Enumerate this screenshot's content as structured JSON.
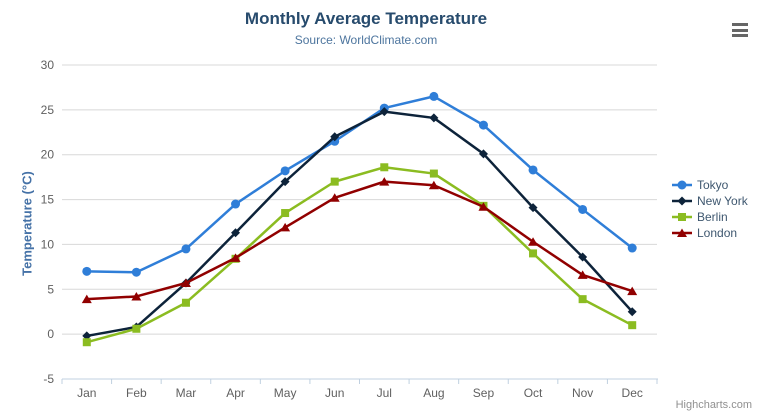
{
  "header": {
    "title": "Monthly Average Temperature",
    "subtitle": "Source: WorldClimate.com"
  },
  "credits_label": "Highcharts.com",
  "palette": {
    "title_color": "#274b6d",
    "subtitle_color": "#4d759e",
    "axis_title_color": "#4572a7",
    "tick_label_color": "#606060",
    "gridline_color": "#d8d8d8",
    "axis_line_color": "#c0d0e0",
    "legend_text_color": "#3e576f",
    "credits_color": "#909090",
    "menu_icon_color": "#666666"
  },
  "chart_data": {
    "type": "line",
    "title": "Monthly Average Temperature",
    "subtitle": "Source: WorldClimate.com",
    "categories": [
      "Jan",
      "Feb",
      "Mar",
      "Apr",
      "May",
      "Jun",
      "Jul",
      "Aug",
      "Sep",
      "Oct",
      "Nov",
      "Dec"
    ],
    "xlabel": "",
    "ylabel": "Temperature (°C)",
    "ylim": [
      -5,
      30
    ],
    "ytick_step": 5,
    "grid": true,
    "legend_position": "right",
    "series": [
      {
        "name": "Tokyo",
        "color": "#2f7ed8",
        "marker": "circle",
        "values": [
          7.0,
          6.9,
          9.5,
          14.5,
          18.2,
          21.5,
          25.2,
          26.5,
          23.3,
          18.3,
          13.9,
          9.6
        ]
      },
      {
        "name": "New York",
        "color": "#0d233a",
        "marker": "diamond",
        "values": [
          -0.2,
          0.8,
          5.7,
          11.3,
          17.0,
          22.0,
          24.8,
          24.1,
          20.1,
          14.1,
          8.6,
          2.5
        ]
      },
      {
        "name": "Berlin",
        "color": "#8bbc21",
        "marker": "square",
        "values": [
          -0.9,
          0.6,
          3.5,
          8.4,
          13.5,
          17.0,
          18.6,
          17.9,
          14.3,
          9.0,
          3.9,
          1.0
        ]
      },
      {
        "name": "London",
        "color": "#910000",
        "marker": "triangle",
        "values": [
          3.9,
          4.2,
          5.7,
          8.5,
          11.9,
          15.2,
          17.0,
          16.6,
          14.2,
          10.3,
          6.6,
          4.8
        ]
      }
    ]
  }
}
